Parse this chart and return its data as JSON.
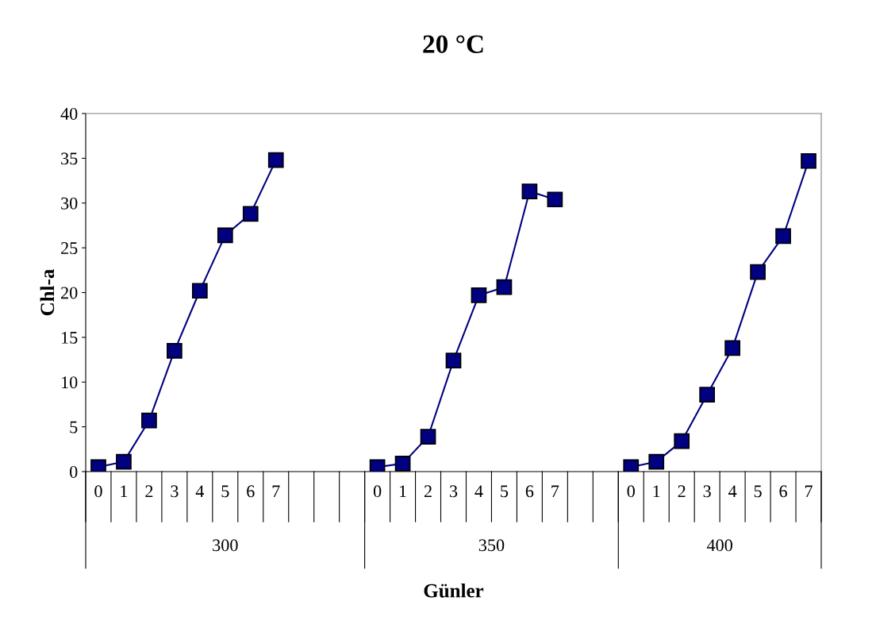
{
  "chart_data": {
    "type": "line",
    "title": "20 °C",
    "xlabel": "Günler",
    "ylabel": "Chl-a",
    "categories": [
      "0",
      "1",
      "2",
      "3",
      "4",
      "5",
      "6",
      "7",
      null,
      null,
      null,
      "0",
      "1",
      "2",
      "3",
      "4",
      "5",
      "6",
      "7",
      null,
      null,
      "0",
      "1",
      "2",
      "3",
      "4",
      "5",
      "6",
      "7"
    ],
    "series": [
      {
        "color": "#000080",
        "values": [
          0.5,
          1.1,
          5.7,
          13.5,
          20.2,
          26.4,
          28.8,
          34.8,
          null,
          null,
          null,
          0.5,
          0.9,
          3.9,
          12.4,
          19.7,
          20.6,
          31.3,
          30.4,
          null,
          null,
          0.5,
          1.1,
          3.4,
          8.6,
          13.8,
          22.3,
          26.3,
          34.7
        ]
      }
    ],
    "annotations": [
      "300",
      "350",
      "400"
    ],
    "ylim": [
      0,
      40
    ],
    "yticks": [
      0,
      5,
      10,
      15,
      20,
      25,
      30,
      35,
      40
    ],
    "marker": "square",
    "line_style": "solid",
    "grid": false,
    "legend": false
  }
}
